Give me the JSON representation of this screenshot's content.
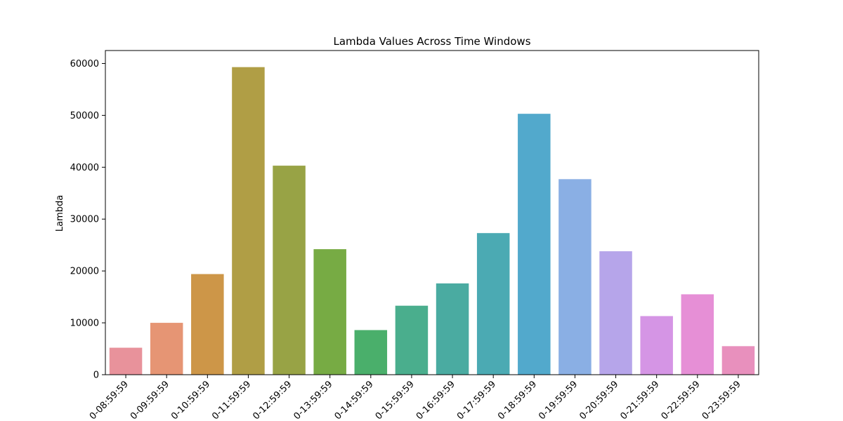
{
  "chart_data": {
    "type": "bar",
    "title": "Lambda Values Across Time Windows",
    "xlabel": "",
    "ylabel": "Lambda",
    "ylim": [
      0,
      62500
    ],
    "yticks": [
      0,
      10000,
      20000,
      30000,
      40000,
      50000,
      60000
    ],
    "categories": [
      "0-08:59:59",
      "0-09:59:59",
      "0-10:59:59",
      "0-11:59:59",
      "0-12:59:59",
      "0-13:59:59",
      "0-14:59:59",
      "0-15:59:59",
      "0-16:59:59",
      "0-17:59:59",
      "0-18:59:59",
      "0-19:59:59",
      "0-20:59:59",
      "0-21:59:59",
      "0-22:59:59",
      "0-23:59:59"
    ],
    "values": [
      5200,
      10000,
      19400,
      59300,
      40300,
      24200,
      8600,
      13300,
      17600,
      27300,
      50300,
      37700,
      23800,
      11300,
      15500,
      5500
    ],
    "colors": [
      "#e8929b",
      "#e69574",
      "#cd9648",
      "#b09e45",
      "#98a345",
      "#77ab44",
      "#4aaf6b",
      "#4aae8d",
      "#4aaba1",
      "#4baab3",
      "#52a9cc",
      "#8aafe4",
      "#b6a5ea",
      "#d595e5",
      "#e68fd6",
      "#e890bd"
    ],
    "grid": false,
    "legend": "none"
  }
}
